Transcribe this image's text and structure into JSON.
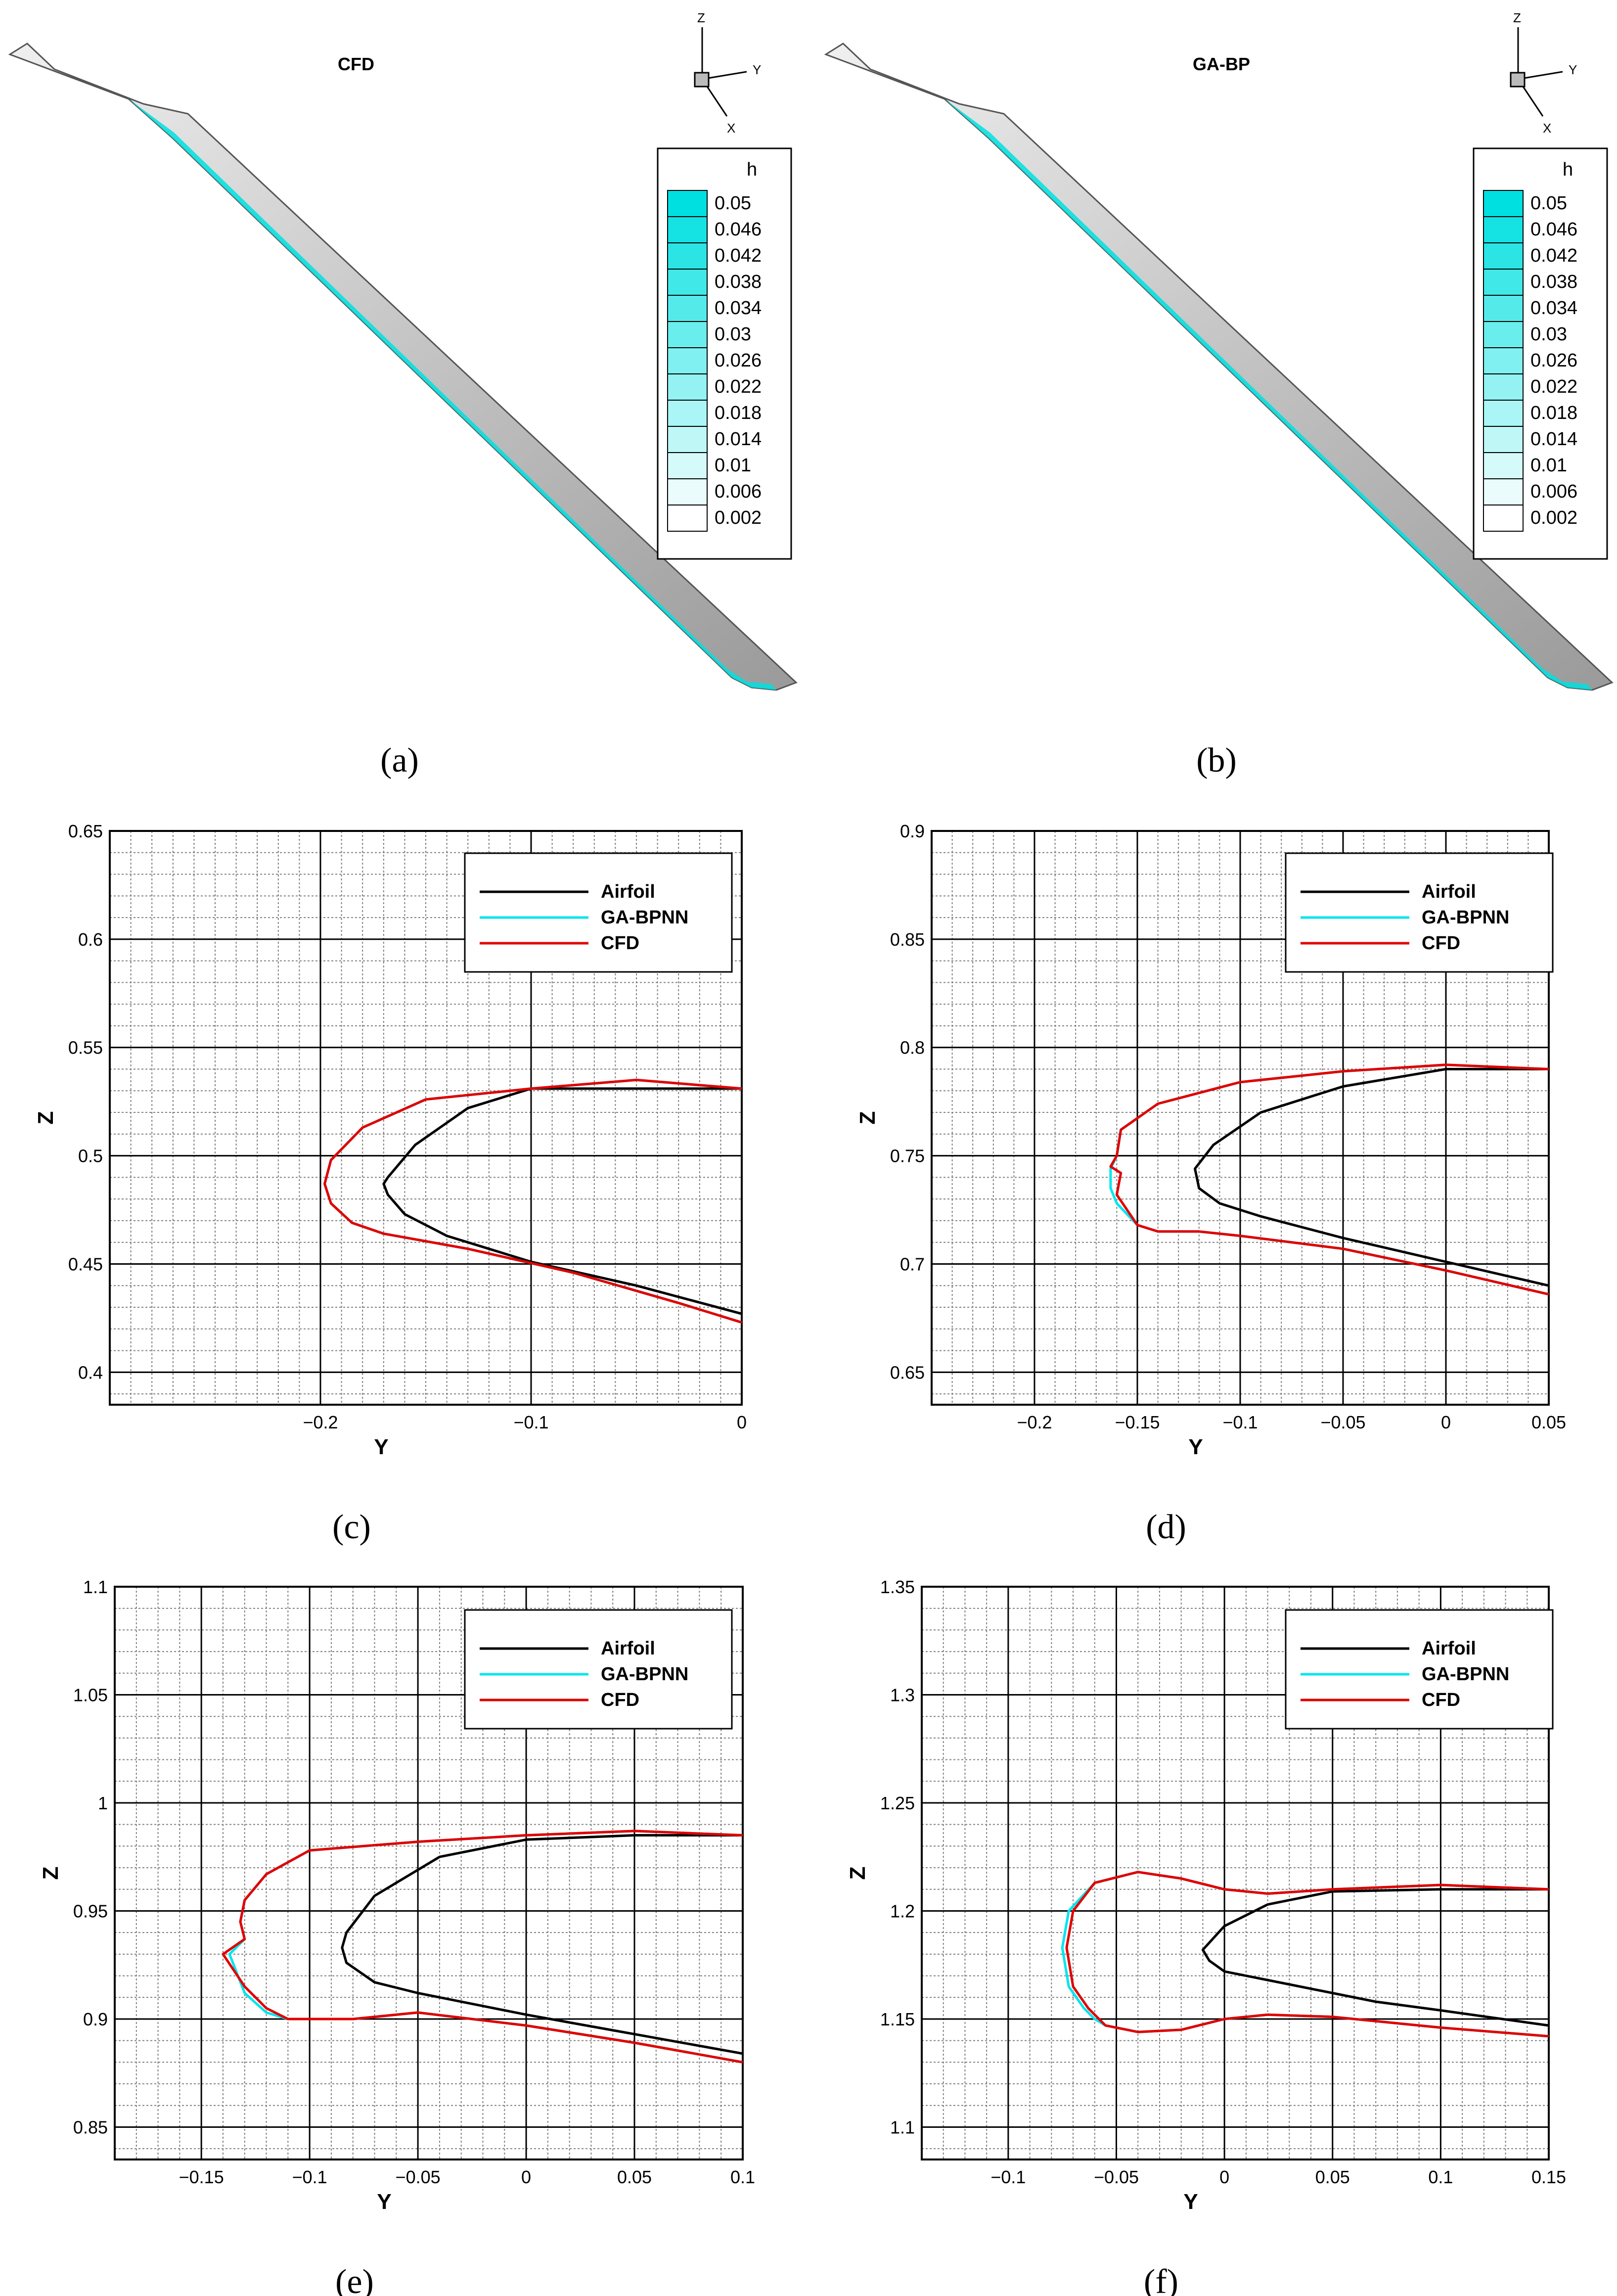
{
  "blades": [
    {
      "title": "CFD",
      "panel": "(a)",
      "axes": {
        "z": "Z",
        "y": "Y",
        "x": "X"
      }
    },
    {
      "title": "GA-BP",
      "panel": "(b)",
      "axes": {
        "z": "Z",
        "y": "Y",
        "x": "X"
      }
    }
  ],
  "colorbar": {
    "title": "h",
    "levels": [
      "0.05",
      "0.046",
      "0.042",
      "0.038",
      "0.034",
      "0.03",
      "0.026",
      "0.022",
      "0.018",
      "0.014",
      "0.01",
      "0.006",
      "0.002"
    ]
  },
  "colors": {
    "airfoil": "#000000",
    "ga_bpnn": "#00e5ee",
    "cfd": "#e00000",
    "ice": "#00e0e0",
    "grid_major": "#000000",
    "grid_minor": "#7f7f7f"
  },
  "chart_data": [
    {
      "type": "line",
      "panel": "(c)",
      "xlabel": "Y",
      "ylabel": "Z",
      "xlim": [
        -0.3,
        0
      ],
      "ylim": [
        0.385,
        0.65
      ],
      "xticks": [
        -0.2,
        -0.1,
        0
      ],
      "xtick_labels": [
        "-0.2",
        "-0.1",
        "0"
      ],
      "yticks": [
        0.4,
        0.45,
        0.5,
        0.55,
        0.6,
        0.65
      ],
      "ytick_labels": [
        "0.4",
        "0.45",
        "0.5",
        "0.55",
        "0.6",
        "0.65"
      ],
      "x_minor": 0.01,
      "y_minor": 0.01,
      "legend": [
        "Airfoil",
        "GA-BPNN",
        "CFD"
      ],
      "series": [
        {
          "name": "Airfoil",
          "x": [
            0,
            -0.05,
            -0.1,
            -0.13,
            -0.155,
            -0.168,
            -0.17,
            -0.168,
            -0.16,
            -0.14,
            -0.1,
            -0.05,
            0
          ],
          "y": [
            0.531,
            0.531,
            0.531,
            0.522,
            0.505,
            0.49,
            0.487,
            0.482,
            0.473,
            0.463,
            0.451,
            0.44,
            0.427
          ]
        },
        {
          "name": "GA-BPNN",
          "x": [
            0,
            -0.05,
            -0.1,
            -0.15,
            -0.18,
            -0.195,
            -0.198,
            -0.195,
            -0.185,
            -0.17,
            -0.13,
            -0.08,
            -0.03,
            0
          ],
          "y": [
            0.531,
            0.535,
            0.531,
            0.526,
            0.513,
            0.498,
            0.487,
            0.478,
            0.469,
            0.464,
            0.457,
            0.446,
            0.432,
            0.423
          ]
        },
        {
          "name": "CFD",
          "x": [
            0,
            -0.05,
            -0.1,
            -0.15,
            -0.18,
            -0.195,
            -0.198,
            -0.195,
            -0.185,
            -0.17,
            -0.13,
            -0.08,
            -0.03,
            0
          ],
          "y": [
            0.531,
            0.535,
            0.531,
            0.526,
            0.513,
            0.498,
            0.487,
            0.478,
            0.469,
            0.464,
            0.457,
            0.446,
            0.432,
            0.423
          ]
        }
      ]
    },
    {
      "type": "line",
      "panel": "(d)",
      "xlabel": "Y",
      "ylabel": "Z",
      "xlim": [
        -0.25,
        0.05
      ],
      "ylim": [
        0.635,
        0.9
      ],
      "xticks": [
        -0.2,
        -0.15,
        -0.1,
        -0.05,
        0,
        0.05
      ],
      "xtick_labels": [
        "-0.2",
        "-0.15",
        "-0.1",
        "-0.05",
        "0",
        "0.05"
      ],
      "yticks": [
        0.65,
        0.7,
        0.75,
        0.8,
        0.85,
        0.9
      ],
      "ytick_labels": [
        "0.65",
        "0.7",
        "0.75",
        "0.8",
        "0.85",
        "0.9"
      ],
      "x_minor": 0.01,
      "y_minor": 0.01,
      "legend": [
        "Airfoil",
        "GA-BPNN",
        "CFD"
      ],
      "series": [
        {
          "name": "Airfoil",
          "x": [
            0.05,
            0,
            -0.05,
            -0.09,
            -0.113,
            -0.122,
            -0.12,
            -0.11,
            -0.09,
            -0.05,
            0,
            0.05
          ],
          "y": [
            0.79,
            0.79,
            0.782,
            0.77,
            0.755,
            0.744,
            0.735,
            0.728,
            0.722,
            0.712,
            0.701,
            0.69
          ]
        },
        {
          "name": "GA-BPNN",
          "x": [
            0.05,
            0,
            -0.05,
            -0.1,
            -0.14,
            -0.158,
            -0.16,
            -0.163,
            -0.163,
            -0.16,
            -0.15,
            -0.14,
            -0.12,
            -0.1,
            -0.05,
            0,
            0.05
          ],
          "y": [
            0.79,
            0.792,
            0.789,
            0.784,
            0.774,
            0.762,
            0.75,
            0.744,
            0.735,
            0.728,
            0.718,
            0.715,
            0.715,
            0.713,
            0.707,
            0.697,
            0.686
          ]
        },
        {
          "name": "CFD",
          "x": [
            0.05,
            0,
            -0.05,
            -0.1,
            -0.14,
            -0.158,
            -0.16,
            -0.163,
            -0.158,
            -0.16,
            -0.15,
            -0.14,
            -0.12,
            -0.1,
            -0.05,
            0,
            0.05
          ],
          "y": [
            0.79,
            0.792,
            0.789,
            0.784,
            0.774,
            0.762,
            0.75,
            0.745,
            0.742,
            0.732,
            0.718,
            0.715,
            0.715,
            0.713,
            0.707,
            0.697,
            0.686
          ]
        }
      ]
    },
    {
      "type": "line",
      "panel": "(e)",
      "xlabel": "Y",
      "ylabel": "Z",
      "xlim": [
        -0.19,
        0.1
      ],
      "ylim": [
        0.835,
        1.1
      ],
      "xticks": [
        -0.15,
        -0.1,
        -0.05,
        0,
        0.05,
        0.1
      ],
      "xtick_labels": [
        "-0.15",
        "-0.1",
        "-0.05",
        "0",
        "0.05",
        "0.1"
      ],
      "yticks": [
        0.85,
        0.9,
        0.95,
        1,
        1.05,
        1.1
      ],
      "ytick_labels": [
        "0.85",
        "0.9",
        "0.95",
        "1",
        "1.05",
        "1.1"
      ],
      "x_minor": 0.01,
      "y_minor": 0.01,
      "legend": [
        "Airfoil",
        "GA-BPNN",
        "CFD"
      ],
      "series": [
        {
          "name": "Airfoil",
          "x": [
            0.1,
            0.05,
            0,
            -0.04,
            -0.07,
            -0.083,
            -0.085,
            -0.083,
            -0.07,
            -0.05,
            0,
            0.05,
            0.1
          ],
          "y": [
            0.985,
            0.985,
            0.983,
            0.975,
            0.957,
            0.94,
            0.933,
            0.926,
            0.917,
            0.912,
            0.902,
            0.893,
            0.884
          ]
        },
        {
          "name": "GA-BPNN",
          "x": [
            0.1,
            0.05,
            0,
            -0.05,
            -0.1,
            -0.12,
            -0.13,
            -0.132,
            -0.13,
            -0.137,
            -0.13,
            -0.12,
            -0.11,
            -0.08,
            -0.05,
            0,
            0.05,
            0.1
          ],
          "y": [
            0.985,
            0.987,
            0.985,
            0.982,
            0.978,
            0.967,
            0.955,
            0.945,
            0.937,
            0.93,
            0.912,
            0.903,
            0.9,
            0.9,
            0.903,
            0.897,
            0.889,
            0.88
          ]
        },
        {
          "name": "CFD",
          "x": [
            0.1,
            0.05,
            0,
            -0.05,
            -0.1,
            -0.12,
            -0.13,
            -0.132,
            -0.13,
            -0.14,
            -0.13,
            -0.12,
            -0.11,
            -0.08,
            -0.05,
            0,
            0.05,
            0.1
          ],
          "y": [
            0.985,
            0.987,
            0.985,
            0.982,
            0.978,
            0.967,
            0.955,
            0.945,
            0.937,
            0.93,
            0.915,
            0.905,
            0.9,
            0.9,
            0.903,
            0.897,
            0.889,
            0.88
          ]
        }
      ]
    },
    {
      "type": "line",
      "panel": "(f)",
      "xlabel": "Y",
      "ylabel": "Z",
      "xlim": [
        -0.14,
        0.15
      ],
      "ylim": [
        1.085,
        1.35
      ],
      "xticks": [
        -0.1,
        -0.05,
        0,
        0.05,
        0.1,
        0.15
      ],
      "xtick_labels": [
        "-0.1",
        "-0.05",
        "0",
        "0.05",
        "0.1",
        "0.15"
      ],
      "yticks": [
        1.1,
        1.15,
        1.2,
        1.25,
        1.3,
        1.35
      ],
      "ytick_labels": [
        "1.1",
        "1.15",
        "1.2",
        "1.25",
        "1.3",
        "1.35"
      ],
      "x_minor": 0.01,
      "y_minor": 0.01,
      "legend": [
        "Airfoil",
        "GA-BPNN",
        "CFD"
      ],
      "series": [
        {
          "name": "Airfoil",
          "x": [
            0.15,
            0.1,
            0.05,
            0.02,
            0,
            -0.01,
            -0.007,
            0,
            0.03,
            0.07,
            0.1,
            0.15
          ],
          "y": [
            1.21,
            1.21,
            1.209,
            1.203,
            1.193,
            1.182,
            1.177,
            1.172,
            1.166,
            1.158,
            1.154,
            1.147
          ]
        },
        {
          "name": "GA-BPNN",
          "x": [
            0.15,
            0.1,
            0.05,
            0.02,
            0,
            -0.02,
            -0.04,
            -0.06,
            -0.072,
            -0.075,
            -0.072,
            -0.065,
            -0.06,
            -0.055,
            -0.04,
            -0.02,
            0,
            0.02,
            0.05,
            0.1,
            0.15
          ],
          "y": [
            1.21,
            1.212,
            1.21,
            1.208,
            1.21,
            1.215,
            1.218,
            1.213,
            1.2,
            1.183,
            1.165,
            1.155,
            1.15,
            1.147,
            1.144,
            1.145,
            1.15,
            1.152,
            1.151,
            1.146,
            1.142
          ]
        },
        {
          "name": "CFD",
          "x": [
            0.15,
            0.1,
            0.05,
            0.02,
            0,
            -0.02,
            -0.04,
            -0.06,
            -0.07,
            -0.073,
            -0.07,
            -0.063,
            -0.058,
            -0.055,
            -0.04,
            -0.02,
            0,
            0.02,
            0.05,
            0.1,
            0.15
          ],
          "y": [
            1.21,
            1.212,
            1.21,
            1.208,
            1.21,
            1.215,
            1.218,
            1.213,
            1.2,
            1.183,
            1.165,
            1.155,
            1.15,
            1.147,
            1.144,
            1.145,
            1.15,
            1.152,
            1.151,
            1.146,
            1.142
          ]
        }
      ]
    }
  ]
}
